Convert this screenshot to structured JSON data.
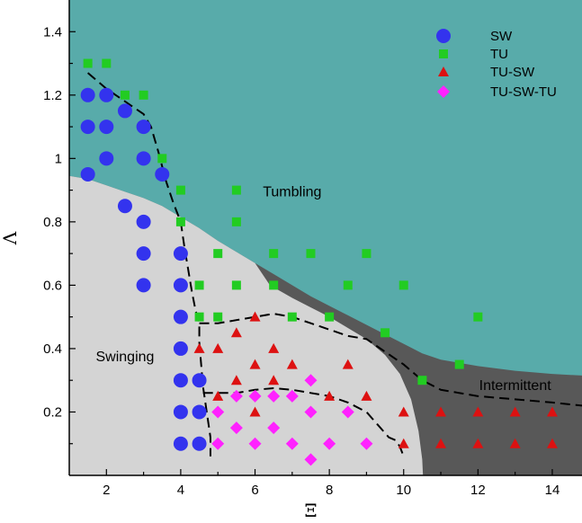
{
  "chart_data": {
    "type": "scatter",
    "xlabel": "Ξ",
    "ylabel": "Λ",
    "xlim": [
      1,
      14.8
    ],
    "ylim": [
      0,
      1.5
    ],
    "x_ticks": [
      2,
      4,
      6,
      8,
      10,
      12,
      14
    ],
    "y_ticks": [
      0.2,
      0.4,
      0.6,
      0.8,
      1,
      1.2,
      1.4
    ],
    "x_tick_labels": [
      "2",
      "4",
      "6",
      "8",
      "10",
      "12",
      "14"
    ],
    "y_tick_labels": [
      "0.2",
      "0.4",
      "0.6",
      "0.8",
      "1",
      "1.2",
      "1.4"
    ],
    "grid": false,
    "legend_position": "top-right",
    "colors": {
      "tumbling_region": "#58ABAA",
      "swinging_region": "#D4D4D4",
      "intermittent_region": "#585858",
      "SW": "#3333EE",
      "TU": "#22CC22",
      "TU-SW": "#DD1111",
      "TU-SW-TU": "#FF22FF"
    },
    "regions": [
      {
        "label": "Tumbling",
        "label_at": [
          7,
          0.88
        ]
      },
      {
        "label": "Swinging",
        "label_at": [
          2.5,
          0.36
        ]
      },
      {
        "label": "Intermittent",
        "label_at": [
          13,
          0.27
        ]
      }
    ],
    "boundaries": {
      "tumbling_lower": [
        [
          1,
          0.945
        ],
        [
          1.5,
          0.935
        ],
        [
          2,
          0.915
        ],
        [
          2.5,
          0.895
        ],
        [
          3,
          0.875
        ],
        [
          3.5,
          0.85
        ],
        [
          4,
          0.815
        ],
        [
          4.5,
          0.78
        ],
        [
          5,
          0.74
        ],
        [
          5.5,
          0.705
        ],
        [
          6,
          0.67
        ],
        [
          6.5,
          0.635
        ],
        [
          7,
          0.6
        ],
        [
          7.5,
          0.565
        ],
        [
          8,
          0.535
        ],
        [
          8.5,
          0.505
        ],
        [
          9,
          0.475
        ],
        [
          9.5,
          0.445
        ],
        [
          10,
          0.415
        ],
        [
          10.5,
          0.385
        ],
        [
          11,
          0.365
        ],
        [
          12,
          0.345
        ],
        [
          13,
          0.33
        ],
        [
          14,
          0.32
        ],
        [
          14.8,
          0.315
        ]
      ],
      "swinging_right": [
        [
          6.4,
          0.6
        ],
        [
          7,
          0.56
        ],
        [
          7.5,
          0.53
        ],
        [
          8,
          0.5
        ],
        [
          8.5,
          0.465
        ],
        [
          9,
          0.43
        ],
        [
          9.5,
          0.38
        ],
        [
          9.9,
          0.32
        ],
        [
          10.2,
          0.24
        ],
        [
          10.4,
          0.14
        ],
        [
          10.5,
          0.05
        ],
        [
          10.52,
          0
        ]
      ]
    },
    "dashed_lines": [
      [
        [
          1.5,
          1.27
        ],
        [
          2,
          1.22
        ],
        [
          2.5,
          1.18
        ],
        [
          3,
          1.14
        ],
        [
          3.2,
          1.1
        ],
        [
          3.4,
          1.02
        ],
        [
          3.6,
          0.93
        ],
        [
          3.8,
          0.86
        ],
        [
          4,
          0.8
        ],
        [
          4.1,
          0.72
        ],
        [
          4.2,
          0.65
        ],
        [
          4.3,
          0.58
        ],
        [
          4.4,
          0.52
        ],
        [
          4.5,
          0.48
        ],
        [
          4.5,
          0.42
        ],
        [
          4.55,
          0.35
        ],
        [
          4.6,
          0.28
        ],
        [
          4.7,
          0.2
        ],
        [
          4.8,
          0.12
        ],
        [
          4.8,
          0.06
        ]
      ],
      [
        [
          4.5,
          0.48
        ],
        [
          5,
          0.48
        ],
        [
          5.5,
          0.49
        ],
        [
          6,
          0.5
        ],
        [
          6.5,
          0.51
        ],
        [
          7,
          0.5
        ],
        [
          7.5,
          0.48
        ],
        [
          8,
          0.46
        ],
        [
          8.5,
          0.44
        ],
        [
          9,
          0.43
        ],
        [
          9.5,
          0.39
        ],
        [
          10,
          0.35
        ],
        [
          10.5,
          0.3
        ],
        [
          11,
          0.27
        ],
        [
          12,
          0.25
        ],
        [
          13,
          0.24
        ],
        [
          14,
          0.23
        ],
        [
          14.8,
          0.22
        ]
      ],
      [
        [
          4.6,
          0.26
        ],
        [
          5,
          0.26
        ],
        [
          5.5,
          0.26
        ],
        [
          6,
          0.27
        ],
        [
          6.5,
          0.275
        ],
        [
          7,
          0.27
        ],
        [
          7.5,
          0.26
        ],
        [
          8,
          0.25
        ],
        [
          8.5,
          0.23
        ],
        [
          9,
          0.2
        ],
        [
          9.3,
          0.16
        ],
        [
          9.6,
          0.12
        ],
        [
          9.8,
          0.11
        ],
        [
          9.9,
          0.09
        ],
        [
          10,
          0.06
        ]
      ]
    ],
    "series": [
      {
        "name": "SW",
        "marker": "circle",
        "points": [
          [
            1.5,
            0.95
          ],
          [
            1.5,
            1.1
          ],
          [
            1.5,
            1.2
          ],
          [
            2,
            1
          ],
          [
            2,
            1.1
          ],
          [
            2,
            1.2
          ],
          [
            2.5,
            0.85
          ],
          [
            2.5,
            1.15
          ],
          [
            3,
            0.6
          ],
          [
            3,
            0.7
          ],
          [
            3,
            0.8
          ],
          [
            3,
            1
          ],
          [
            3,
            1.1
          ],
          [
            3.5,
            0.95
          ],
          [
            4,
            0.1
          ],
          [
            4,
            0.2
          ],
          [
            4,
            0.3
          ],
          [
            4,
            0.4
          ],
          [
            4,
            0.5
          ],
          [
            4,
            0.6
          ],
          [
            4,
            0.7
          ],
          [
            4.5,
            0.1
          ],
          [
            4.5,
            0.2
          ],
          [
            4.5,
            0.3
          ]
        ]
      },
      {
        "name": "TU",
        "marker": "square",
        "points": [
          [
            1.5,
            1.3
          ],
          [
            2,
            1.3
          ],
          [
            2.5,
            1.2
          ],
          [
            3,
            1.2
          ],
          [
            3.5,
            1
          ],
          [
            4,
            0.8
          ],
          [
            4,
            0.9
          ],
          [
            4.5,
            0.5
          ],
          [
            4.5,
            0.6
          ],
          [
            5,
            0.5
          ],
          [
            5,
            0.7
          ],
          [
            5.5,
            0.6
          ],
          [
            5.5,
            0.8
          ],
          [
            5.5,
            0.9
          ],
          [
            6.5,
            0.6
          ],
          [
            6.5,
            0.7
          ],
          [
            7,
            0.5
          ],
          [
            7.5,
            0.7
          ],
          [
            8,
            0.5
          ],
          [
            8.5,
            0.6
          ],
          [
            9,
            0.7
          ],
          [
            9.5,
            0.45
          ],
          [
            10,
            0.6
          ],
          [
            10.5,
            0.3
          ],
          [
            11.5,
            0.35
          ],
          [
            12,
            0.5
          ]
        ]
      },
      {
        "name": "TU-SW",
        "marker": "triangle",
        "points": [
          [
            4.5,
            0.4
          ],
          [
            5,
            0.25
          ],
          [
            5,
            0.4
          ],
          [
            5.5,
            0.3
          ],
          [
            5.5,
            0.45
          ],
          [
            6,
            0.2
          ],
          [
            6,
            0.35
          ],
          [
            6,
            0.5
          ],
          [
            6.5,
            0.3
          ],
          [
            6.5,
            0.4
          ],
          [
            7,
            0.35
          ],
          [
            8,
            0.25
          ],
          [
            8.5,
            0.35
          ],
          [
            9,
            0.25
          ],
          [
            10,
            0.1
          ],
          [
            10,
            0.2
          ],
          [
            11,
            0.1
          ],
          [
            11,
            0.2
          ],
          [
            12,
            0.1
          ],
          [
            12,
            0.2
          ],
          [
            13,
            0.1
          ],
          [
            13,
            0.2
          ],
          [
            14,
            0.1
          ],
          [
            14,
            0.2
          ]
        ]
      },
      {
        "name": "TU-SW-TU",
        "marker": "diamond",
        "points": [
          [
            5,
            0.1
          ],
          [
            5,
            0.2
          ],
          [
            5.5,
            0.15
          ],
          [
            5.5,
            0.25
          ],
          [
            6,
            0.1
          ],
          [
            6,
            0.25
          ],
          [
            6.5,
            0.15
          ],
          [
            6.5,
            0.25
          ],
          [
            7,
            0.1
          ],
          [
            7,
            0.25
          ],
          [
            7.5,
            0.05
          ],
          [
            7.5,
            0.2
          ],
          [
            7.5,
            0.3
          ],
          [
            8,
            0.1
          ],
          [
            8.5,
            0.2
          ],
          [
            9,
            0.1
          ]
        ]
      }
    ]
  }
}
